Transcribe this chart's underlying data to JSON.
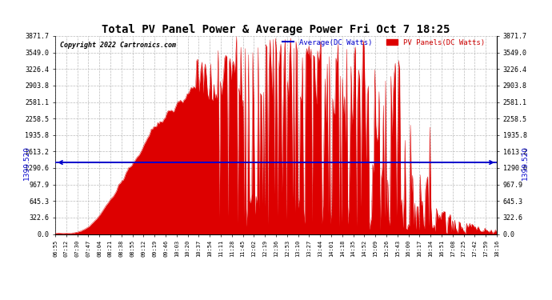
{
  "title": "Total PV Panel Power & Average Power Fri Oct 7 18:25",
  "copyright": "Copyright 2022 Cartronics.com",
  "legend_avg": "Average(DC Watts)",
  "legend_pv": "PV Panels(DC Watts)",
  "avg_value": 1399.52,
  "avg_label": "1399.520",
  "ylim_min": 0.0,
  "ylim_max": 3871.7,
  "yticks": [
    0.0,
    322.6,
    645.3,
    967.9,
    1290.6,
    1613.2,
    1935.8,
    2258.5,
    2581.1,
    2903.8,
    3226.4,
    3549.0,
    3871.7
  ],
  "bg_color": "#ffffff",
  "fill_color": "#dd0000",
  "line_color": "#dd0000",
  "avg_line_color": "#0000cc",
  "grid_color": "#bbbbbb",
  "title_color": "#000000",
  "copyright_color": "#000000",
  "x_tick_labels": [
    "06:55",
    "07:12",
    "07:30",
    "07:47",
    "08:04",
    "08:21",
    "08:38",
    "08:55",
    "09:12",
    "09:19",
    "09:46",
    "10:03",
    "10:20",
    "10:37",
    "10:54",
    "11:11",
    "11:28",
    "11:45",
    "12:02",
    "12:19",
    "12:36",
    "12:53",
    "13:10",
    "13:27",
    "13:44",
    "14:01",
    "14:18",
    "14:35",
    "14:52",
    "15:09",
    "15:26",
    "15:43",
    "16:00",
    "16:17",
    "16:34",
    "16:51",
    "17:08",
    "17:25",
    "17:42",
    "17:59",
    "18:16"
  ],
  "num_points": 410
}
